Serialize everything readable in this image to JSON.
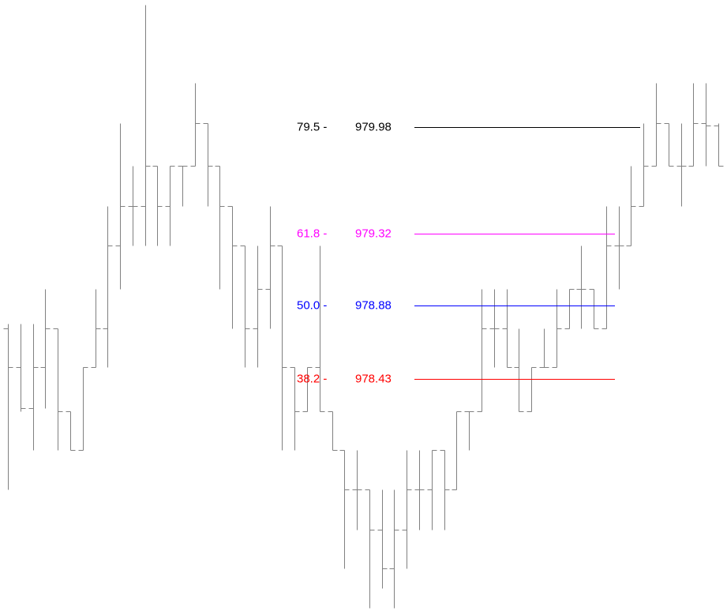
{
  "chart_data": {
    "type": "ohlc",
    "color": "#808080",
    "ylim": [
      977.0,
      980.76
    ],
    "ohlc": [
      [
        978.74,
        978.77,
        977.75,
        978.5
      ],
      [
        978.5,
        978.77,
        978.23,
        978.25
      ],
      [
        978.25,
        978.77,
        977.99,
        978.5
      ],
      [
        978.5,
        978.98,
        978.25,
        978.74
      ],
      [
        978.74,
        978.74,
        977.99,
        978.23
      ],
      [
        978.23,
        978.23,
        977.99,
        977.99
      ],
      [
        977.99,
        978.5,
        977.99,
        978.5
      ],
      [
        978.5,
        978.98,
        978.5,
        978.74
      ],
      [
        978.74,
        979.49,
        978.5,
        979.25
      ],
      [
        979.25,
        980.0,
        978.98,
        979.49
      ],
      [
        979.49,
        979.74,
        979.25,
        979.49
      ],
      [
        979.49,
        980.73,
        979.25,
        979.74
      ],
      [
        979.74,
        979.74,
        979.25,
        979.49
      ],
      [
        979.49,
        979.74,
        979.25,
        979.74
      ],
      [
        979.74,
        979.74,
        979.49,
        979.74
      ],
      [
        979.74,
        980.25,
        979.74,
        980.0
      ],
      [
        980.0,
        980.0,
        979.49,
        979.74
      ],
      [
        979.74,
        979.74,
        978.98,
        979.49
      ],
      [
        979.49,
        979.49,
        978.74,
        979.25
      ],
      [
        979.25,
        979.25,
        978.5,
        978.74
      ],
      [
        978.74,
        979.25,
        978.5,
        978.98
      ],
      [
        978.98,
        979.49,
        978.74,
        979.25
      ],
      [
        979.25,
        979.25,
        977.99,
        978.5
      ],
      [
        978.5,
        978.5,
        977.99,
        978.23
      ],
      [
        978.23,
        978.5,
        978.23,
        978.5
      ],
      [
        978.5,
        979.25,
        978.23,
        978.23
      ],
      [
        978.23,
        978.23,
        977.99,
        977.99
      ],
      [
        977.99,
        977.99,
        977.26,
        977.75
      ],
      [
        977.75,
        977.99,
        977.5,
        977.75
      ],
      [
        977.75,
        977.75,
        977.02,
        977.5
      ],
      [
        977.5,
        977.75,
        977.14,
        977.26
      ],
      [
        977.26,
        977.75,
        977.02,
        977.5
      ],
      [
        977.5,
        977.99,
        977.26,
        977.75
      ],
      [
        977.75,
        977.99,
        977.5,
        977.75
      ],
      [
        977.75,
        977.99,
        977.5,
        977.99
      ],
      [
        977.99,
        977.99,
        977.5,
        977.75
      ],
      [
        977.75,
        978.23,
        977.75,
        978.23
      ],
      [
        978.23,
        978.23,
        977.99,
        978.23
      ],
      [
        978.23,
        978.98,
        978.23,
        978.74
      ],
      [
        978.74,
        978.98,
        978.5,
        978.74
      ],
      [
        978.74,
        978.98,
        978.5,
        978.5
      ],
      [
        978.5,
        978.74,
        978.23,
        978.23
      ],
      [
        978.23,
        978.5,
        978.23,
        978.5
      ],
      [
        978.5,
        978.74,
        978.5,
        978.5
      ],
      [
        978.5,
        978.98,
        978.5,
        978.74
      ],
      [
        978.74,
        978.98,
        978.74,
        978.98
      ],
      [
        978.98,
        979.25,
        978.74,
        978.98
      ],
      [
        978.98,
        978.98,
        978.74,
        978.74
      ],
      [
        978.74,
        979.49,
        978.74,
        979.25
      ],
      [
        979.25,
        979.49,
        978.98,
        979.25
      ],
      [
        979.25,
        979.74,
        979.25,
        979.49
      ],
      [
        979.49,
        980.0,
        979.49,
        979.74
      ],
      [
        979.74,
        980.25,
        979.74,
        980.0
      ],
      [
        980.0,
        980.0,
        979.74,
        979.74
      ],
      [
        979.74,
        980.0,
        979.49,
        979.74
      ],
      [
        979.74,
        980.25,
        979.74,
        980.0
      ],
      [
        980.0,
        980.25,
        979.74,
        979.99
      ],
      [
        979.99,
        980.0,
        979.74,
        979.74
      ]
    ],
    "levels": [
      {
        "label": "79.5 -",
        "value": 979.98,
        "color": "#000000"
      },
      {
        "label": "61.8 -",
        "value": 979.32,
        "color": "#ff00ff"
      },
      {
        "label": "50.0 -",
        "value": 978.88,
        "color": "#0000ff"
      },
      {
        "label": "38.2 -",
        "value": 978.43,
        "color": "#ff0000"
      }
    ]
  }
}
